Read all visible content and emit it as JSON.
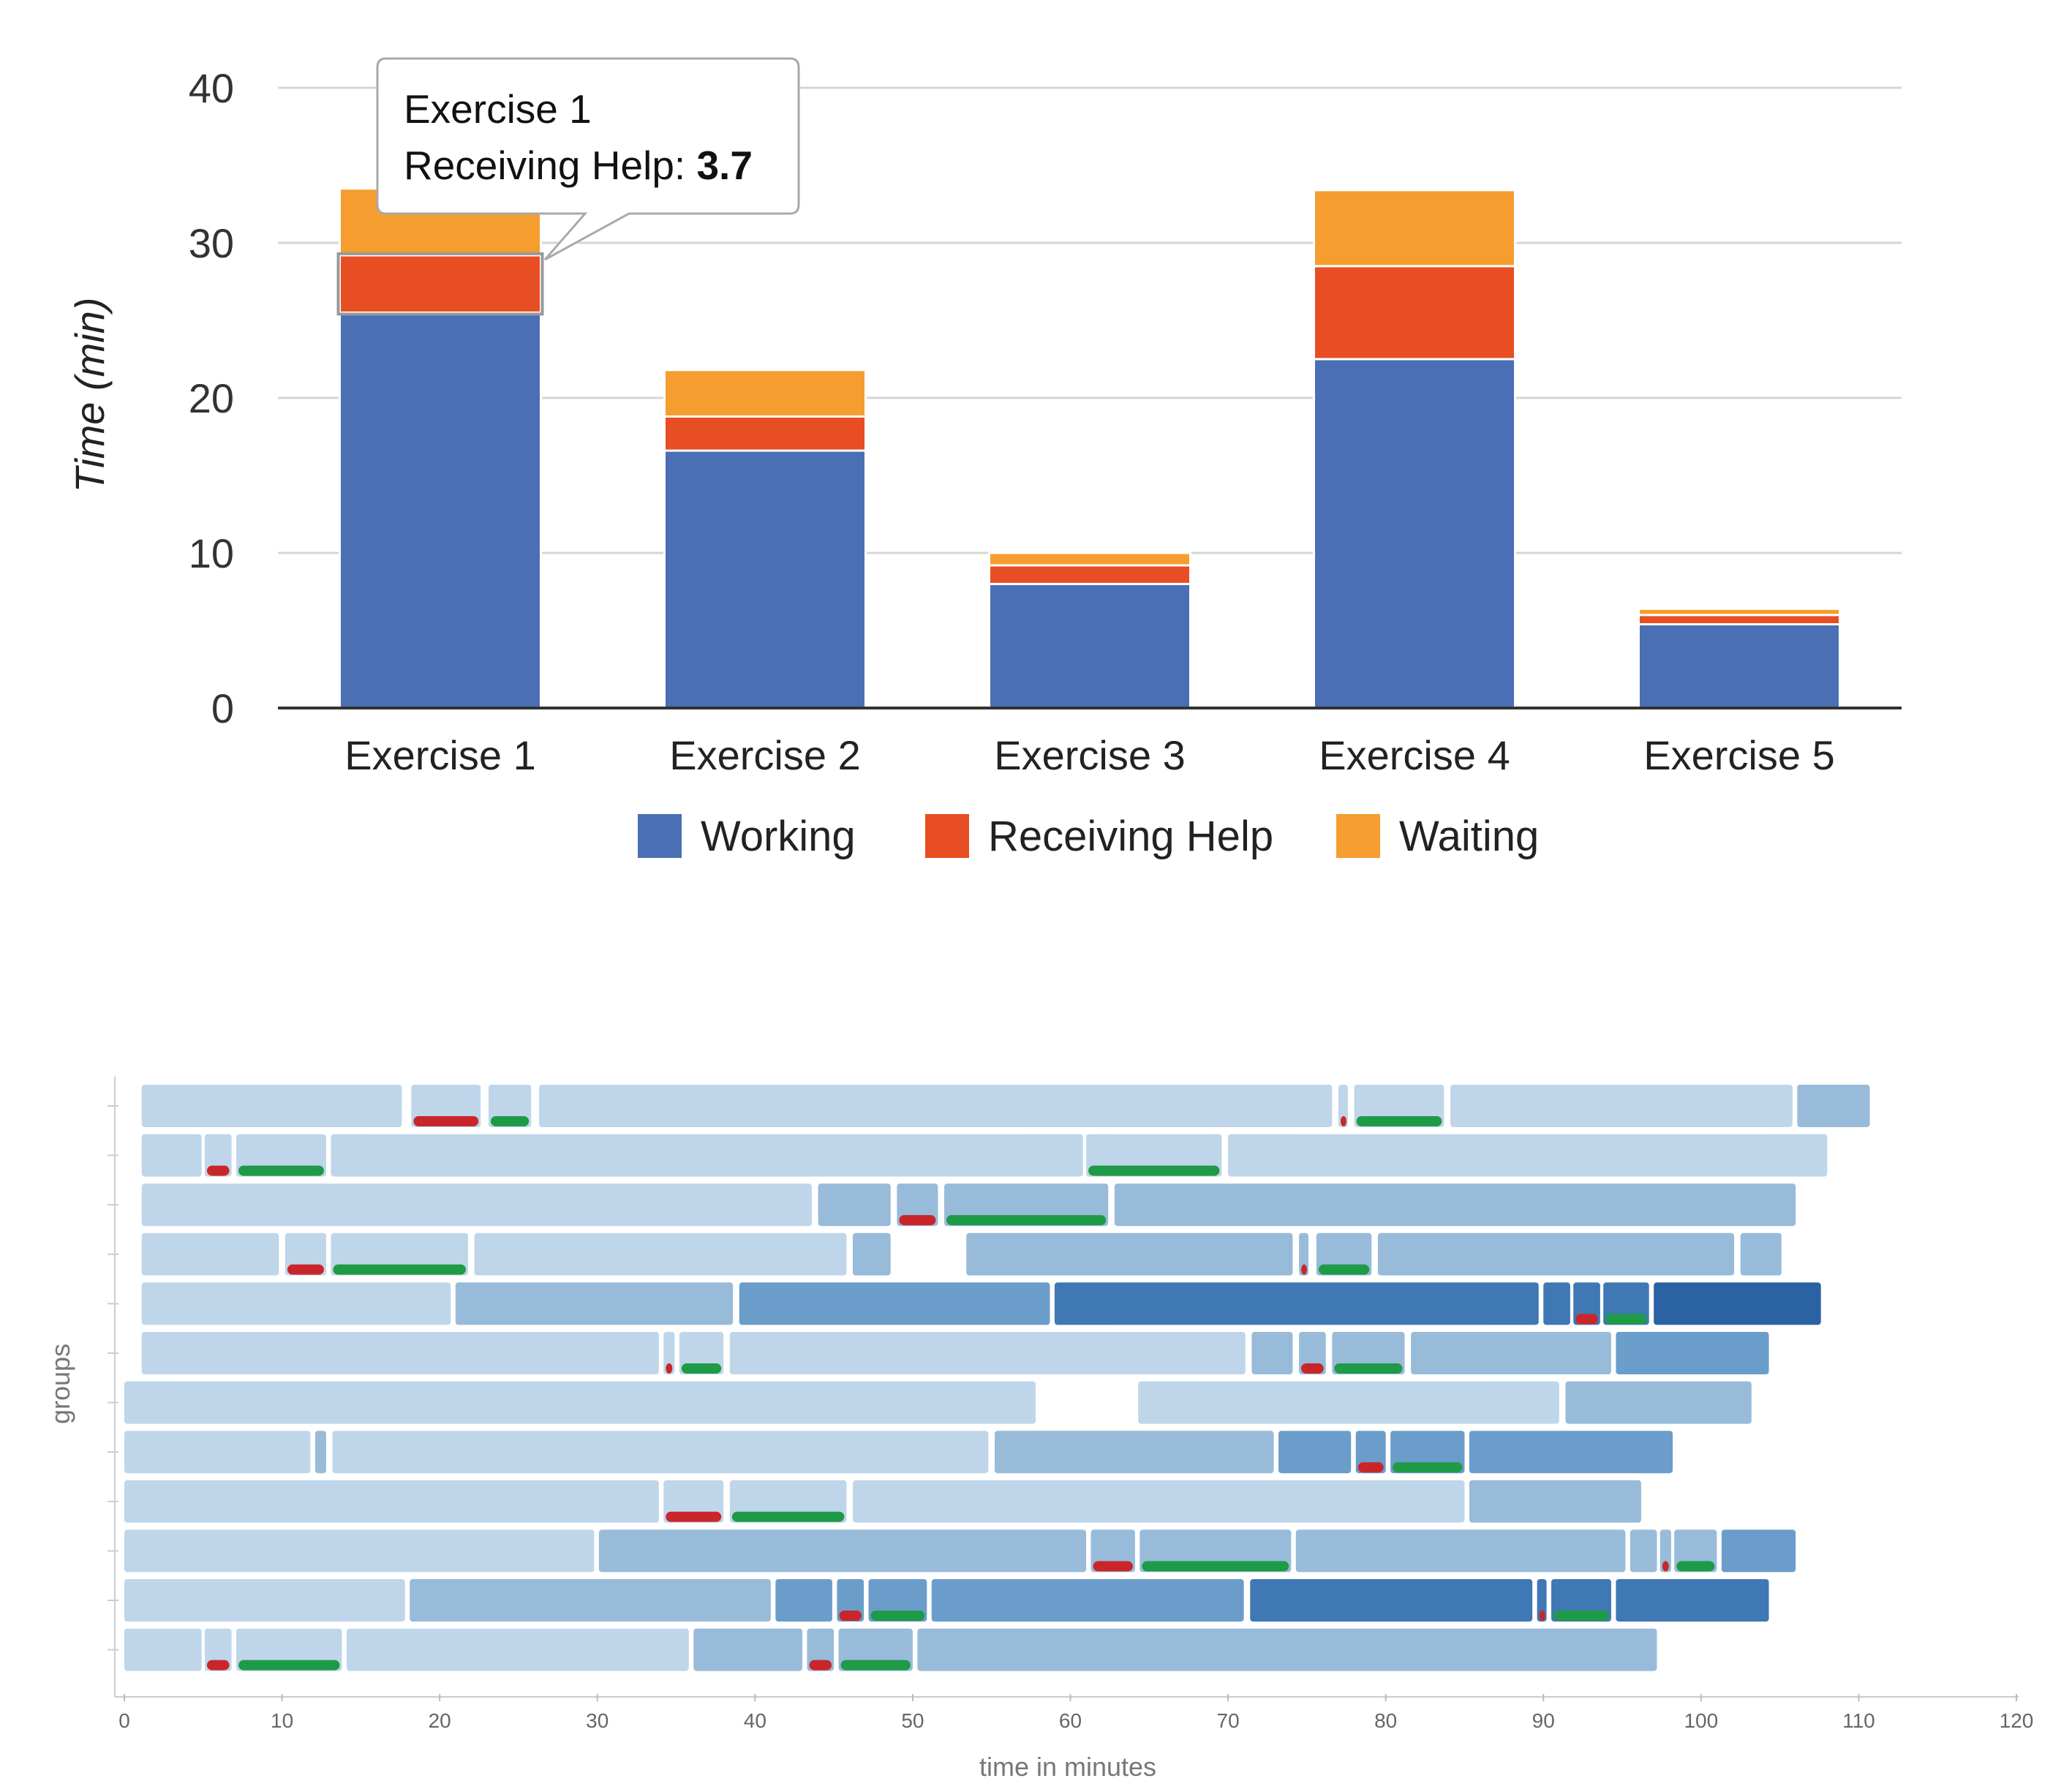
{
  "chart_data": [
    {
      "type": "bar",
      "stacked": true,
      "categories": [
        "Exercise 1",
        "Exercise 2",
        "Exercise 3",
        "Exercise 4",
        "Exercise 5"
      ],
      "series": [
        {
          "name": "Working",
          "color": "#4a6fb5",
          "values": [
            25.5,
            16.6,
            8.0,
            22.5,
            5.4
          ]
        },
        {
          "name": "Receiving Help",
          "color": "#e84e23",
          "values": [
            3.7,
            2.2,
            1.2,
            6.0,
            0.6
          ]
        },
        {
          "name": "Waiting",
          "color": "#f59d2e",
          "values": [
            4.3,
            3.0,
            0.8,
            4.9,
            0.4
          ]
        }
      ],
      "ylabel": "Time (min)",
      "ylim": [
        0,
        40
      ],
      "yticks": [
        0,
        10,
        20,
        30,
        40
      ],
      "grid": true,
      "legend": "bottom",
      "tooltip": {
        "title": "Exercise 1",
        "label": "Receiving Help: ",
        "value": "3.7"
      }
    },
    {
      "type": "timeline",
      "xlabel": "time in minutes",
      "ylabel": "groups",
      "xlim": [
        0,
        120
      ],
      "xticks": [
        0,
        10,
        20,
        30,
        40,
        50,
        60,
        70,
        80,
        90,
        100,
        110,
        120
      ],
      "grid": false,
      "shade_colors": [
        "#bfd6ea",
        "#98bbda",
        "#6b9dca",
        "#3f78b4",
        "#2b62a4"
      ],
      "help_color": "#c9262b",
      "help2_color": "#1f9a46",
      "rows": [
        {
          "segments": [
            [
              1.1,
              17.6,
              0
            ],
            [
              18.2,
              22.6,
              0
            ],
            [
              23.1,
              25.8,
              0
            ],
            [
              26.3,
              76.6,
              0
            ],
            [
              77.0,
              77.6,
              0
            ],
            [
              78.0,
              83.7,
              0
            ],
            [
              84.1,
              105.8,
              0
            ],
            [
              106.1,
              110.7,
              1
            ]
          ],
          "red": [
            [
              18.2,
              22.6
            ],
            [
              77.0,
              77.6
            ]
          ],
          "green": [
            [
              23.1,
              25.8
            ],
            [
              78.0,
              83.7
            ]
          ]
        },
        {
          "segments": [
            [
              1.1,
              4.9,
              0
            ],
            [
              5.1,
              6.8,
              0
            ],
            [
              7.1,
              12.8,
              0
            ],
            [
              13.1,
              60.8,
              0
            ],
            [
              61.0,
              69.6,
              0
            ],
            [
              70.0,
              108.0,
              0
            ]
          ],
          "red": [
            [
              5.1,
              6.8
            ]
          ],
          "green": [
            [
              7.1,
              12.8
            ],
            [
              61.0,
              69.6
            ]
          ]
        },
        {
          "segments": [
            [
              1.1,
              43.6,
              0
            ],
            [
              44.0,
              48.6,
              1
            ],
            [
              49.0,
              51.6,
              1
            ],
            [
              52.0,
              62.4,
              1
            ],
            [
              62.8,
              106.0,
              1
            ]
          ],
          "red": [
            [
              49.0,
              51.6
            ]
          ],
          "green": [
            [
              52.0,
              62.4
            ]
          ]
        },
        {
          "segments": [
            [
              1.1,
              9.8,
              0
            ],
            [
              10.2,
              12.8,
              0
            ],
            [
              13.1,
              21.8,
              0
            ],
            [
              22.2,
              45.8,
              0
            ],
            [
              46.2,
              48.6,
              1
            ],
            [
              53.4,
              74.1,
              1
            ],
            [
              74.5,
              75.1,
              1
            ],
            [
              75.6,
              79.1,
              1
            ],
            [
              79.5,
              102.1,
              1
            ],
            [
              102.5,
              105.1,
              1
            ]
          ],
          "red": [
            [
              10.2,
              12.8
            ],
            [
              74.5,
              75.1
            ]
          ],
          "green": [
            [
              13.1,
              21.8
            ],
            [
              75.6,
              79.1
            ]
          ]
        },
        {
          "segments": [
            [
              1.1,
              20.7,
              0
            ],
            [
              21.0,
              38.6,
              1
            ],
            [
              39.0,
              58.7,
              2
            ],
            [
              59.0,
              89.7,
              3
            ],
            [
              90.0,
              91.7,
              3
            ],
            [
              91.9,
              93.6,
              3
            ],
            [
              93.8,
              96.7,
              3
            ],
            [
              97.0,
              107.6,
              4
            ]
          ],
          "red": [
            [
              91.9,
              93.6
            ]
          ],
          "green": [
            [
              93.8,
              96.7
            ]
          ]
        },
        {
          "segments": [
            [
              1.1,
              33.9,
              0
            ],
            [
              34.2,
              34.9,
              0
            ],
            [
              35.2,
              38.0,
              0
            ],
            [
              38.4,
              71.1,
              0
            ],
            [
              71.5,
              74.1,
              1
            ],
            [
              74.5,
              76.2,
              1
            ],
            [
              76.6,
              81.2,
              1
            ],
            [
              81.6,
              94.3,
              1
            ],
            [
              94.6,
              104.3,
              2
            ]
          ],
          "red": [
            [
              34.2,
              34.9
            ],
            [
              74.5,
              76.2
            ]
          ],
          "green": [
            [
              35.2,
              38.0
            ],
            [
              76.6,
              81.2
            ]
          ]
        },
        {
          "segments": [
            [
              0,
              57.8,
              0
            ],
            [
              64.3,
              91.0,
              0
            ],
            [
              91.4,
              103.2,
              1
            ]
          ],
          "red": [],
          "green": []
        },
        {
          "segments": [
            [
              0,
              11.8,
              0
            ],
            [
              12.1,
              12.8,
              1
            ],
            [
              13.2,
              54.8,
              0
            ],
            [
              55.2,
              72.9,
              1
            ],
            [
              73.2,
              77.8,
              2
            ],
            [
              78.1,
              80.0,
              2
            ],
            [
              80.3,
              85.0,
              2
            ],
            [
              85.3,
              98.2,
              2
            ]
          ],
          "red": [
            [
              78.1,
              80.0
            ]
          ],
          "green": [
            [
              80.3,
              85.0
            ]
          ]
        },
        {
          "segments": [
            [
              0,
              33.9,
              0
            ],
            [
              34.2,
              38.0,
              0
            ],
            [
              38.4,
              45.8,
              0
            ],
            [
              46.2,
              85.0,
              0
            ],
            [
              85.3,
              96.2,
              1
            ]
          ],
          "red": [
            [
              34.2,
              38.0
            ]
          ],
          "green": [
            [
              38.4,
              45.8
            ]
          ]
        },
        {
          "segments": [
            [
              0,
              29.8,
              0
            ],
            [
              30.1,
              61.0,
              1
            ],
            [
              61.3,
              64.1,
              1
            ],
            [
              64.4,
              74.0,
              1
            ],
            [
              74.3,
              95.2,
              1
            ],
            [
              95.5,
              97.2,
              1
            ],
            [
              97.4,
              98.1,
              1
            ],
            [
              98.3,
              101.0,
              1
            ],
            [
              101.3,
              106.0,
              2
            ]
          ],
          "red": [
            [
              61.3,
              64.1
            ],
            [
              97.4,
              98.1
            ]
          ],
          "green": [
            [
              64.4,
              74.0
            ],
            [
              98.3,
              101.0
            ]
          ]
        },
        {
          "segments": [
            [
              0,
              17.8,
              0
            ],
            [
              18.1,
              41.0,
              1
            ],
            [
              41.3,
              44.9,
              2
            ],
            [
              45.2,
              46.9,
              2
            ],
            [
              47.2,
              50.9,
              2
            ],
            [
              51.2,
              71.0,
              2
            ],
            [
              71.4,
              89.3,
              3
            ],
            [
              89.6,
              90.2,
              3
            ],
            [
              90.5,
              94.3,
              3
            ],
            [
              94.6,
              104.3,
              3
            ]
          ],
          "red": [
            [
              45.2,
              46.9
            ],
            [
              89.6,
              90.2
            ]
          ],
          "green": [
            [
              47.2,
              50.9
            ],
            [
              90.5,
              94.3
            ]
          ]
        },
        {
          "segments": [
            [
              0,
              4.9,
              0
            ],
            [
              5.1,
              6.8,
              0
            ],
            [
              7.1,
              13.8,
              0
            ],
            [
              14.1,
              35.8,
              0
            ],
            [
              36.1,
              43.0,
              1
            ],
            [
              43.3,
              45.0,
              1
            ],
            [
              45.3,
              50.0,
              1
            ],
            [
              50.3,
              97.2,
              1
            ]
          ],
          "red": [
            [
              5.1,
              6.8
            ],
            [
              43.3,
              45.0
            ]
          ],
          "green": [
            [
              7.1,
              13.8
            ],
            [
              45.3,
              50.0
            ]
          ]
        }
      ]
    }
  ]
}
